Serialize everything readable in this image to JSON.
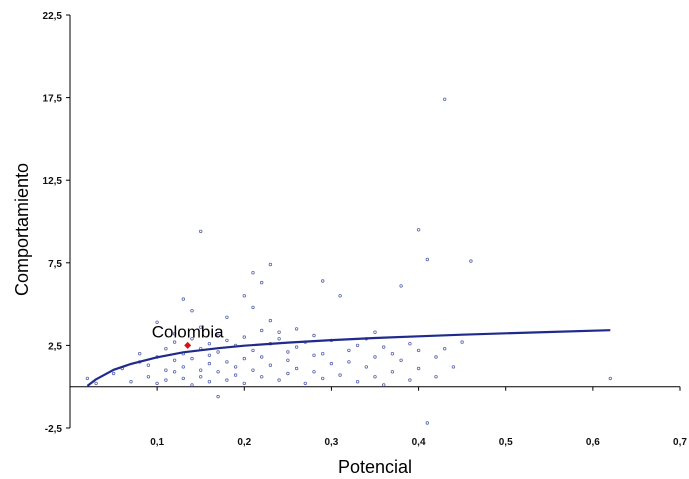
{
  "chart_data": {
    "type": "scatter",
    "xlabel": "Potencial",
    "ylabel": "Comportamiento",
    "xlim": [
      0,
      0.7
    ],
    "ylim": [
      -2.5,
      22.5
    ],
    "xticks": [
      0.1,
      0.2,
      0.3,
      0.4,
      0.5,
      0.6,
      0.7
    ],
    "xtick_labels": [
      "0,1",
      "0,2",
      "0,3",
      "0,4",
      "0,5",
      "0,6",
      "0,7"
    ],
    "yticks": [
      -2.5,
      2.5,
      7.5,
      12.5,
      17.5,
      22.5
    ],
    "ytick_labels": [
      "-2,5",
      "2,5",
      "7,5",
      "12,5",
      "17,5",
      "22,5"
    ],
    "grid": false,
    "legend": "none",
    "colors": {
      "points": "#5a67b0",
      "trendline": "#1f2a8c",
      "highlight": "#e01010",
      "axis": "#000000"
    },
    "series": [
      {
        "points": [
          [
            0.02,
            0.5
          ],
          [
            0.03,
            0.2
          ],
          [
            0.05,
            0.8
          ],
          [
            0.06,
            1.1
          ],
          [
            0.07,
            0.3
          ],
          [
            0.08,
            1.5
          ],
          [
            0.08,
            2.0
          ],
          [
            0.09,
            0.6
          ],
          [
            0.09,
            1.3
          ],
          [
            0.1,
            3.9
          ],
          [
            0.1,
            0.2
          ],
          [
            0.1,
            1.8
          ],
          [
            0.11,
            1.0
          ],
          [
            0.11,
            2.3
          ],
          [
            0.11,
            0.4
          ],
          [
            0.12,
            1.6
          ],
          [
            0.12,
            2.7
          ],
          [
            0.12,
            0.9
          ],
          [
            0.12,
            3.2
          ],
          [
            0.13,
            5.3
          ],
          [
            0.13,
            0.5
          ],
          [
            0.13,
            2.0
          ],
          [
            0.13,
            1.2
          ],
          [
            0.14,
            4.6
          ],
          [
            0.14,
            1.7
          ],
          [
            0.14,
            0.1
          ],
          [
            0.14,
            2.9
          ],
          [
            0.15,
            3.6
          ],
          [
            0.15,
            1.0
          ],
          [
            0.15,
            2.3
          ],
          [
            0.15,
            0.6
          ],
          [
            0.15,
            9.4
          ],
          [
            0.16,
            2.6
          ],
          [
            0.16,
            1.4
          ],
          [
            0.16,
            0.3
          ],
          [
            0.16,
            1.9
          ],
          [
            0.17,
            3.1
          ],
          [
            0.17,
            0.9
          ],
          [
            0.17,
            2.1
          ],
          [
            0.17,
            -0.6
          ],
          [
            0.18,
            1.5
          ],
          [
            0.18,
            2.8
          ],
          [
            0.18,
            4.2
          ],
          [
            0.18,
            0.4
          ],
          [
            0.19,
            1.2
          ],
          [
            0.19,
            2.5
          ],
          [
            0.19,
            0.7
          ],
          [
            0.2,
            5.5
          ],
          [
            0.2,
            3.0
          ],
          [
            0.2,
            1.7
          ],
          [
            0.2,
            0.2
          ],
          [
            0.21,
            4.8
          ],
          [
            0.21,
            6.9
          ],
          [
            0.21,
            2.2
          ],
          [
            0.21,
            1.0
          ],
          [
            0.22,
            3.4
          ],
          [
            0.22,
            6.3
          ],
          [
            0.22,
            0.6
          ],
          [
            0.22,
            1.8
          ],
          [
            0.23,
            2.6
          ],
          [
            0.23,
            7.4
          ],
          [
            0.23,
            4.0
          ],
          [
            0.23,
            1.3
          ],
          [
            0.24,
            2.9
          ],
          [
            0.24,
            0.4
          ],
          [
            0.24,
            3.3
          ],
          [
            0.25,
            1.6
          ],
          [
            0.25,
            2.1
          ],
          [
            0.25,
            0.8
          ],
          [
            0.26,
            3.5
          ],
          [
            0.26,
            2.4
          ],
          [
            0.26,
            1.1
          ],
          [
            0.27,
            0.2
          ],
          [
            0.27,
            2.7
          ],
          [
            0.28,
            1.9
          ],
          [
            0.28,
            0.9
          ],
          [
            0.28,
            3.1
          ],
          [
            0.29,
            6.4
          ],
          [
            0.29,
            2.0
          ],
          [
            0.29,
            0.5
          ],
          [
            0.3,
            1.4
          ],
          [
            0.3,
            2.8
          ],
          [
            0.31,
            5.5
          ],
          [
            0.31,
            0.7
          ],
          [
            0.32,
            2.2
          ],
          [
            0.32,
            1.5
          ],
          [
            0.33,
            0.3
          ],
          [
            0.33,
            2.5
          ],
          [
            0.34,
            1.2
          ],
          [
            0.34,
            2.9
          ],
          [
            0.35,
            0.6
          ],
          [
            0.35,
            3.3
          ],
          [
            0.35,
            1.8
          ],
          [
            0.36,
            2.4
          ],
          [
            0.36,
            0.1
          ],
          [
            0.37,
            0.9
          ],
          [
            0.37,
            2.0
          ],
          [
            0.38,
            6.1
          ],
          [
            0.38,
            1.6
          ],
          [
            0.39,
            2.6
          ],
          [
            0.39,
            0.4
          ],
          [
            0.4,
            9.5
          ],
          [
            0.4,
            1.1
          ],
          [
            0.4,
            2.2
          ],
          [
            0.41,
            7.7
          ],
          [
            0.41,
            -2.2
          ],
          [
            0.42,
            1.8
          ],
          [
            0.42,
            0.6
          ],
          [
            0.43,
            17.4
          ],
          [
            0.43,
            2.3
          ],
          [
            0.44,
            1.2
          ],
          [
            0.45,
            2.7
          ],
          [
            0.46,
            7.6
          ],
          [
            0.62,
            0.5
          ]
        ]
      }
    ],
    "trendline": {
      "type": "logarithmic",
      "points": [
        [
          0.02,
          0.05
        ],
        [
          0.03,
          0.45
        ],
        [
          0.05,
          1.02
        ],
        [
          0.07,
          1.38
        ],
        [
          0.1,
          1.78
        ],
        [
          0.13,
          2.08
        ],
        [
          0.17,
          2.33
        ],
        [
          0.2,
          2.48
        ],
        [
          0.25,
          2.67
        ],
        [
          0.3,
          2.82
        ],
        [
          0.35,
          2.95
        ],
        [
          0.4,
          3.05
        ],
        [
          0.45,
          3.15
        ],
        [
          0.5,
          3.23
        ],
        [
          0.55,
          3.31
        ],
        [
          0.62,
          3.42
        ]
      ]
    },
    "highlight": {
      "label": "Colombia",
      "x": 0.135,
      "y": 2.5
    }
  }
}
